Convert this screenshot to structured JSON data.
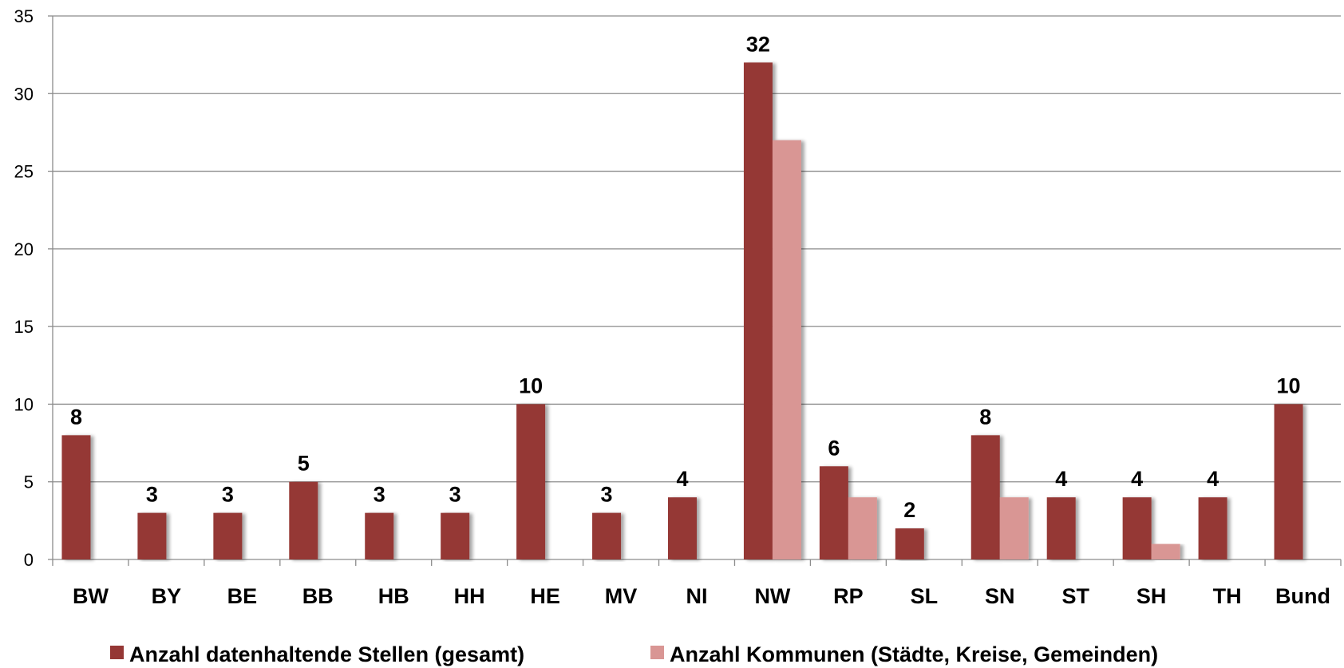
{
  "chart_data": {
    "type": "bar",
    "title": "",
    "xlabel": "",
    "ylabel": "",
    "ylim": [
      0,
      35
    ],
    "yticks": [
      0,
      5,
      10,
      15,
      20,
      25,
      30,
      35
    ],
    "grid": true,
    "legend_position": "bottom",
    "categories": [
      "BW",
      "BY",
      "BE",
      "BB",
      "HB",
      "HH",
      "HE",
      "MV",
      "NI",
      "NW",
      "RP",
      "SL",
      "SN",
      "ST",
      "SH",
      "TH",
      "Bund"
    ],
    "series": [
      {
        "name": "Anzahl datenhaltende Stellen (gesamt)",
        "color": "#953735",
        "values": [
          8,
          3,
          3,
          5,
          3,
          3,
          10,
          3,
          4,
          32,
          6,
          2,
          8,
          4,
          4,
          4,
          10
        ],
        "data_labels": [
          "8",
          "3",
          "3",
          "5",
          "3",
          "3",
          "10",
          "3",
          "4",
          "32",
          "6",
          "2",
          "8",
          "4",
          "4",
          "4",
          "10"
        ]
      },
      {
        "name": "Anzahl Kommunen (Städte, Kreise, Gemeinden)",
        "color": "#d99694",
        "values": [
          0,
          0,
          0,
          0,
          0,
          0,
          0,
          0,
          0,
          27,
          4,
          0,
          4,
          0,
          1,
          0,
          0
        ]
      }
    ]
  }
}
